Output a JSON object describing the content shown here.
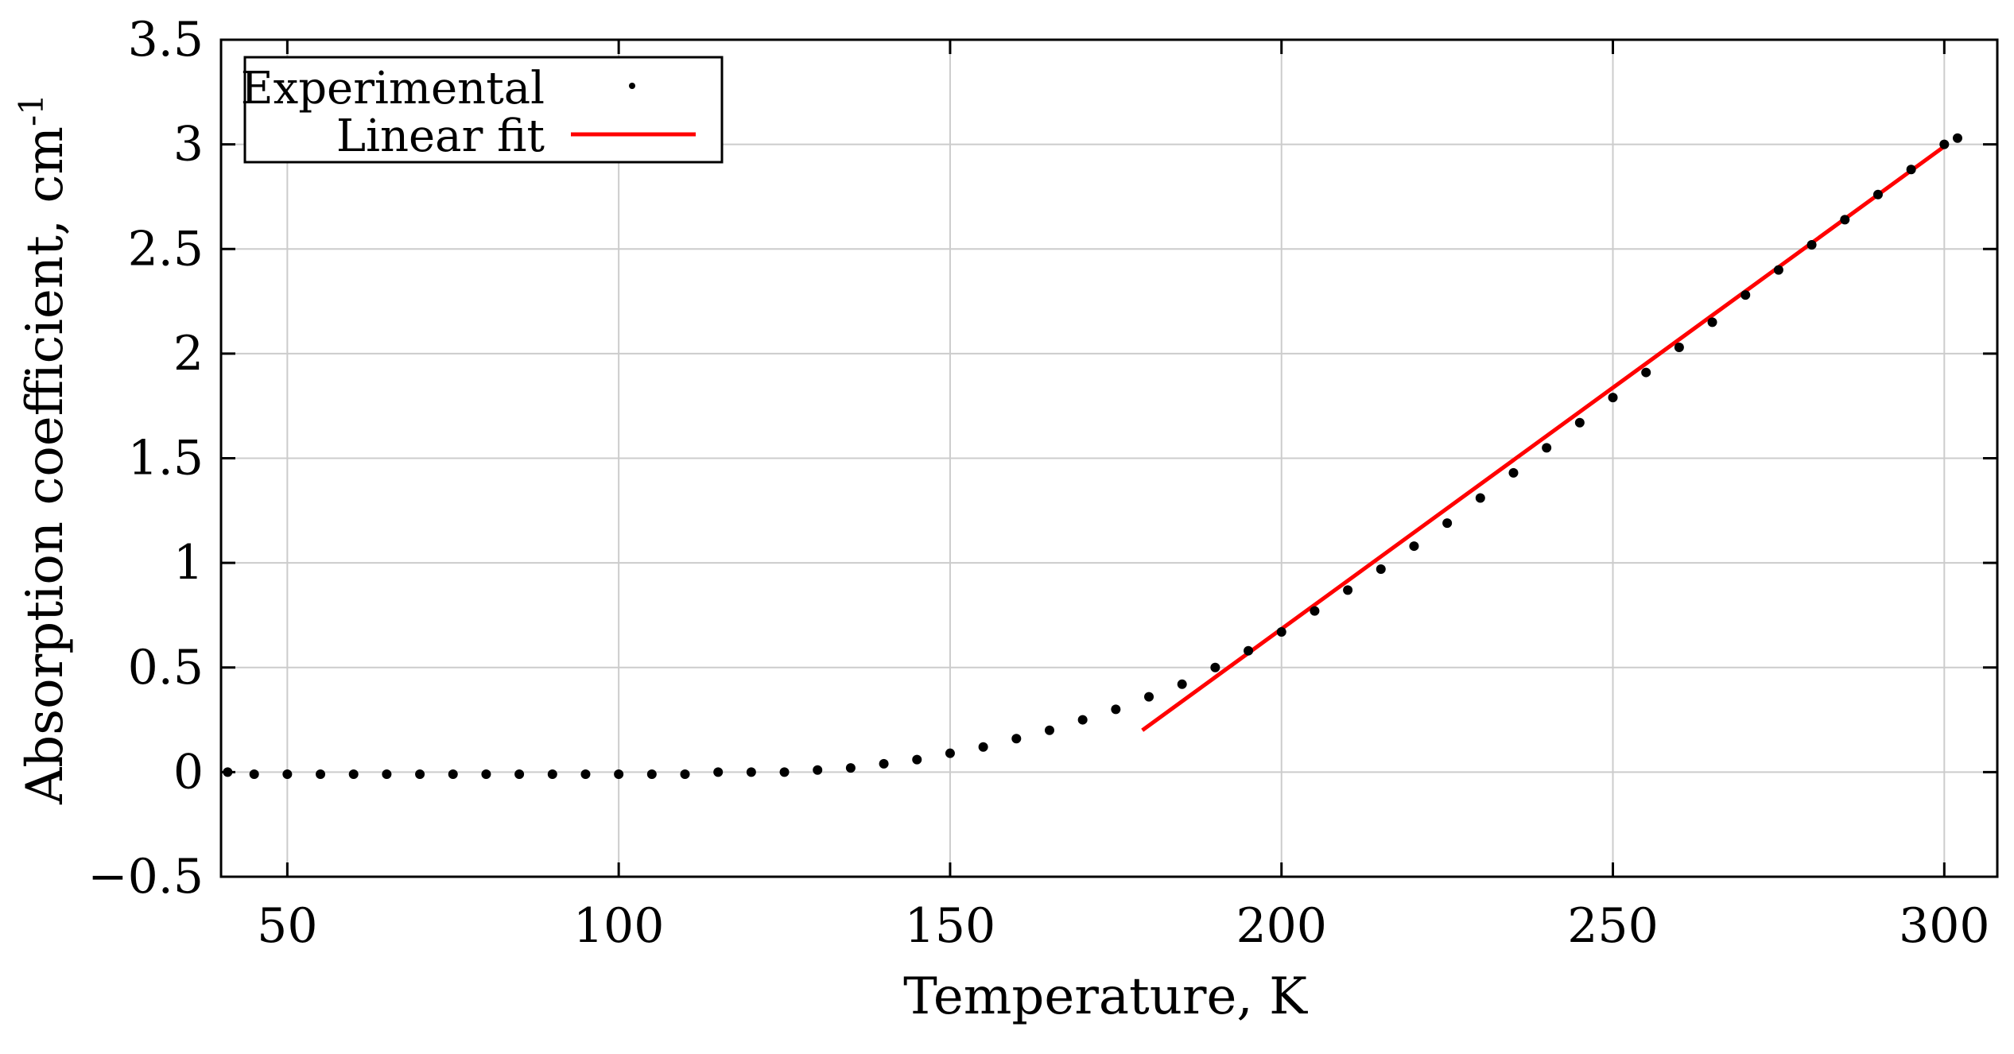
{
  "chart_data": {
    "type": "scatter",
    "xlabel": "Temperature, K",
    "ylabel": "Absorption coefficient, cm",
    "ylabel_superscript": "-1",
    "xlim": [
      40,
      308
    ],
    "ylim": [
      -0.5,
      3.5
    ],
    "xticks": [
      50,
      100,
      150,
      200,
      250,
      300
    ],
    "yticks": [
      -0.5,
      0,
      0.5,
      1,
      1.5,
      2,
      2.5,
      3,
      3.5
    ],
    "ytick_labels": [
      "−0.5",
      "0",
      "0.5",
      "1",
      "1.5",
      "2",
      "2.5",
      "3",
      "3.5"
    ],
    "grid": true,
    "legend_position": "top-left",
    "series": [
      {
        "name": "Experimental",
        "kind": "scatter",
        "color": "#000000",
        "x": [
          41,
          45,
          50,
          55,
          60,
          65,
          70,
          75,
          80,
          85,
          90,
          95,
          100,
          105,
          110,
          115,
          120,
          125,
          130,
          135,
          140,
          145,
          150,
          155,
          160,
          165,
          170,
          175,
          180,
          185,
          190,
          195,
          200,
          205,
          210,
          215,
          220,
          225,
          230,
          235,
          240,
          245,
          250,
          255,
          260,
          265,
          270,
          275,
          280,
          285,
          290,
          295,
          300,
          302
        ],
        "y": [
          0.0,
          -0.01,
          -0.01,
          -0.01,
          -0.01,
          -0.01,
          -0.01,
          -0.01,
          -0.01,
          -0.01,
          -0.01,
          -0.01,
          -0.01,
          -0.01,
          -0.01,
          0.0,
          0.0,
          0.0,
          0.01,
          0.02,
          0.04,
          0.06,
          0.09,
          0.12,
          0.16,
          0.2,
          0.25,
          0.3,
          0.36,
          0.42,
          0.5,
          0.58,
          0.67,
          0.77,
          0.87,
          0.97,
          1.08,
          1.19,
          1.31,
          1.43,
          1.55,
          1.67,
          1.79,
          1.91,
          2.03,
          2.15,
          2.28,
          2.4,
          2.52,
          2.64,
          2.76,
          2.88,
          3.0,
          3.03
        ]
      },
      {
        "name": "Linear fit",
        "kind": "line",
        "color": "#ff0000",
        "x": [
          179,
          300
        ],
        "y": [
          0.2,
          2.99
        ]
      }
    ]
  }
}
